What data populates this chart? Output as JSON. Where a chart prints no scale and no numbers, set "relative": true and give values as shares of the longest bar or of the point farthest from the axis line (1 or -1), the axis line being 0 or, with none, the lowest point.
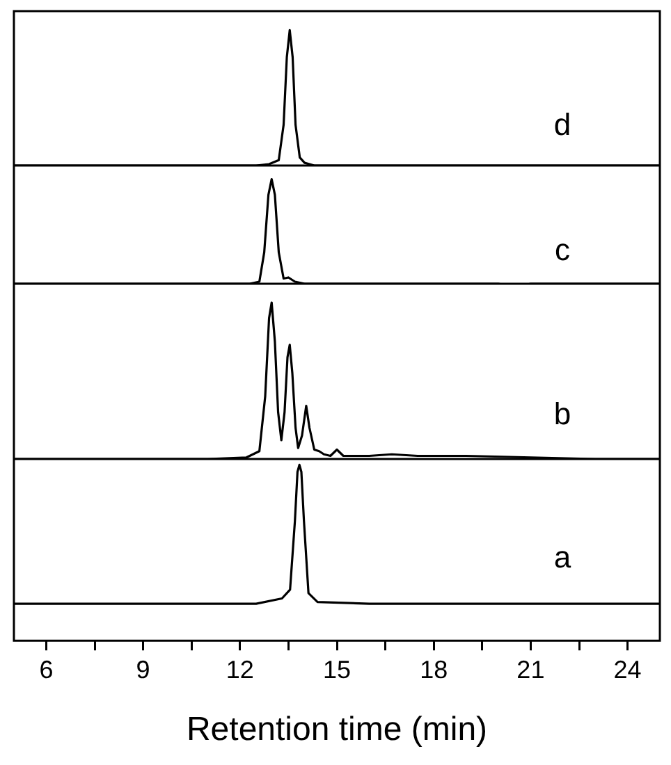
{
  "chart_data": [
    {
      "type": "line",
      "relative": true,
      "xlim": [
        5,
        25
      ],
      "tick_labels": false,
      "series": [
        {
          "name": "d",
          "color": "#000000",
          "x": [
            5,
            8,
            11,
            12.5,
            12.9,
            13.2,
            13.35,
            13.45,
            13.54,
            13.63,
            13.72,
            13.85,
            14.0,
            14.3,
            16,
            20,
            25
          ],
          "values": [
            0,
            0,
            0,
            0,
            0.01,
            0.04,
            0.3,
            0.8,
            1,
            0.8,
            0.3,
            0.06,
            0.02,
            0,
            0,
            0,
            0
          ]
        }
      ]
    },
    {
      "type": "line",
      "relative": true,
      "xlim": [
        5,
        25
      ],
      "tick_labels": false,
      "series": [
        {
          "name": "c",
          "color": "#000000",
          "x": [
            5,
            7,
            9,
            11,
            12.3,
            12.6,
            12.75,
            12.88,
            12.98,
            13.08,
            13.2,
            13.35,
            13.5,
            13.7,
            14,
            16,
            18,
            20,
            20.5,
            21,
            23,
            25
          ],
          "values": [
            0,
            0,
            0,
            0,
            0,
            0.02,
            0.3,
            0.85,
            1,
            0.85,
            0.3,
            0.05,
            0.06,
            0.02,
            0,
            0,
            0,
            0,
            -0.03,
            0,
            0,
            0
          ]
        }
      ]
    },
    {
      "type": "line",
      "relative": true,
      "xlim": [
        5,
        25
      ],
      "tick_labels": false,
      "series": [
        {
          "name": "b",
          "color": "#000000",
          "x": [
            5,
            7,
            9,
            11,
            12.2,
            12.6,
            12.78,
            12.9,
            12.98,
            13.08,
            13.18,
            13.28,
            13.38,
            13.47,
            13.54,
            13.62,
            13.72,
            13.8,
            13.92,
            14.05,
            14.15,
            14.3,
            14.45,
            14.6,
            14.8,
            15.0,
            15.2,
            16,
            16.7,
            17.5,
            19,
            21,
            23,
            25
          ],
          "values": [
            0,
            0,
            0,
            0,
            0.01,
            0.05,
            0.4,
            0.9,
            1,
            0.75,
            0.3,
            0.12,
            0.3,
            0.65,
            0.73,
            0.55,
            0.2,
            0.07,
            0.15,
            0.34,
            0.2,
            0.06,
            0.05,
            0.03,
            0.02,
            0.06,
            0.02,
            0.02,
            0.03,
            0.02,
            0.02,
            0.01,
            0,
            0
          ]
        }
      ]
    },
    {
      "type": "line",
      "relative": true,
      "xlim": [
        5,
        25
      ],
      "xticks": [
        6,
        {
          "value": 7.5,
          "label": null
        },
        9,
        {
          "value": 10.5,
          "label": null
        },
        12,
        {
          "value": 13.5,
          "label": null
        },
        15,
        {
          "value": 16.5,
          "label": null
        },
        18,
        {
          "value": 19.5,
          "label": null
        },
        21,
        {
          "value": 22.5,
          "label": null
        },
        24
      ],
      "tick_labels": "x",
      "xlabel": "Retention time (min)",
      "series": [
        {
          "name": "a",
          "color": "#000000",
          "x": [
            5,
            7,
            9,
            11,
            12.5,
            13.3,
            13.55,
            13.7,
            13.78,
            13.84,
            13.9,
            13.98,
            14.12,
            14.4,
            16,
            18,
            20,
            22,
            25
          ],
          "values": [
            0.21,
            0.21,
            0.21,
            0.21,
            0.21,
            0.24,
            0.29,
            0.68,
            0.96,
            1,
            0.96,
            0.68,
            0.27,
            0.22,
            0.21,
            0.21,
            0.21,
            0.21,
            0.21
          ]
        }
      ]
    }
  ]
}
